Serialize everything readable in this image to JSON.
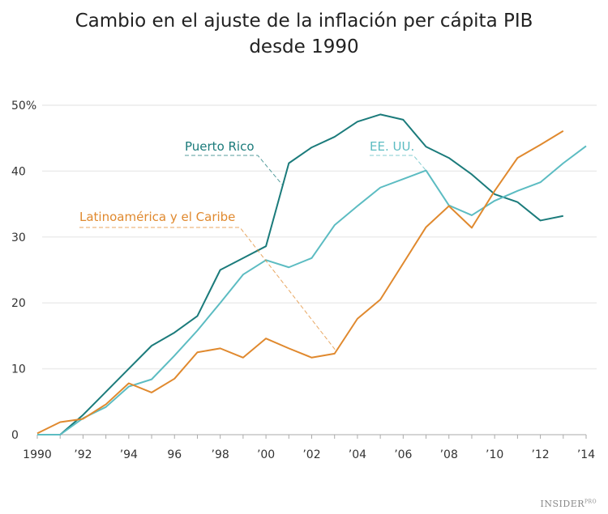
{
  "chart_data": {
    "type": "line",
    "title_line1": "Cambio en el ajuste de la inflación per cápita PIB",
    "title_line2": "desde 1990",
    "xlim": [
      1990,
      2014
    ],
    "ylim": [
      0,
      50
    ],
    "grid": true,
    "x_ticks": [
      1990,
      1992,
      1994,
      1996,
      1998,
      2000,
      2002,
      2004,
      2006,
      2008,
      2010,
      2012,
      2014
    ],
    "x_tick_labels": [
      "1990",
      "’92",
      "’94",
      "96",
      "’98",
      "’00",
      "’02",
      "’04",
      "’06",
      "’08",
      "’10",
      "’12",
      "’14"
    ],
    "y_ticks": [
      0,
      10,
      20,
      30,
      40,
      50
    ],
    "y_tick_labels": [
      "0",
      "10",
      "20",
      "30",
      "40",
      "50%"
    ],
    "series": [
      {
        "name": "Puerto Rico",
        "color": "#1b7b7b",
        "x": [
          1990,
          1991,
          1992,
          1993,
          1994,
          1995,
          1996,
          1997,
          1998,
          1999,
          2000,
          2001,
          2002,
          2003,
          2004,
          2005,
          2006,
          2007,
          2008,
          2009,
          2010,
          2011,
          2012,
          2013
        ],
        "values": [
          0,
          0,
          3,
          6.5,
          10,
          13.5,
          15.5,
          18,
          25,
          26.8,
          28.6,
          41.2,
          43.6,
          45.2,
          47.5,
          48.6,
          47.8,
          43.7,
          42,
          39.5,
          36.5,
          35.3,
          32.5,
          33.2
        ]
      },
      {
        "name": "EE. UU.",
        "color": "#5cbcc2",
        "x": [
          1990,
          1991,
          1992,
          1993,
          1994,
          1995,
          1996,
          1997,
          1998,
          1999,
          2000,
          2001,
          2002,
          2003,
          2004,
          2005,
          2006,
          2007,
          2008,
          2009,
          2010,
          2011,
          2012,
          2013,
          2014
        ],
        "values": [
          0,
          0,
          2.5,
          4.2,
          7.3,
          8.4,
          12,
          15.8,
          20,
          24.3,
          26.5,
          25.4,
          26.8,
          31.8,
          34.7,
          37.5,
          38.8,
          40.1,
          34.8,
          33.3,
          35.5,
          37,
          38.3,
          41.2,
          43.8
        ]
      },
      {
        "name": "Latinoamérica y el Caribe",
        "color": "#e0892e",
        "x": [
          1990,
          1991,
          1992,
          1993,
          1994,
          1995,
          1996,
          1997,
          1998,
          1999,
          2000,
          2001,
          2002,
          2003,
          2004,
          2005,
          2006,
          2007,
          2008,
          2009,
          2010,
          2011,
          2012,
          2013
        ],
        "values": [
          0.2,
          1.9,
          2.4,
          4.6,
          7.8,
          6.4,
          8.5,
          12.5,
          13.1,
          11.7,
          14.6,
          13.1,
          11.7,
          12.3,
          17.6,
          20.5,
          26,
          31.5,
          34.7,
          31.4,
          37,
          42,
          44,
          46.1
        ]
      }
    ]
  },
  "brand": {
    "name": "INSIDER",
    "suffix": "PRO"
  }
}
